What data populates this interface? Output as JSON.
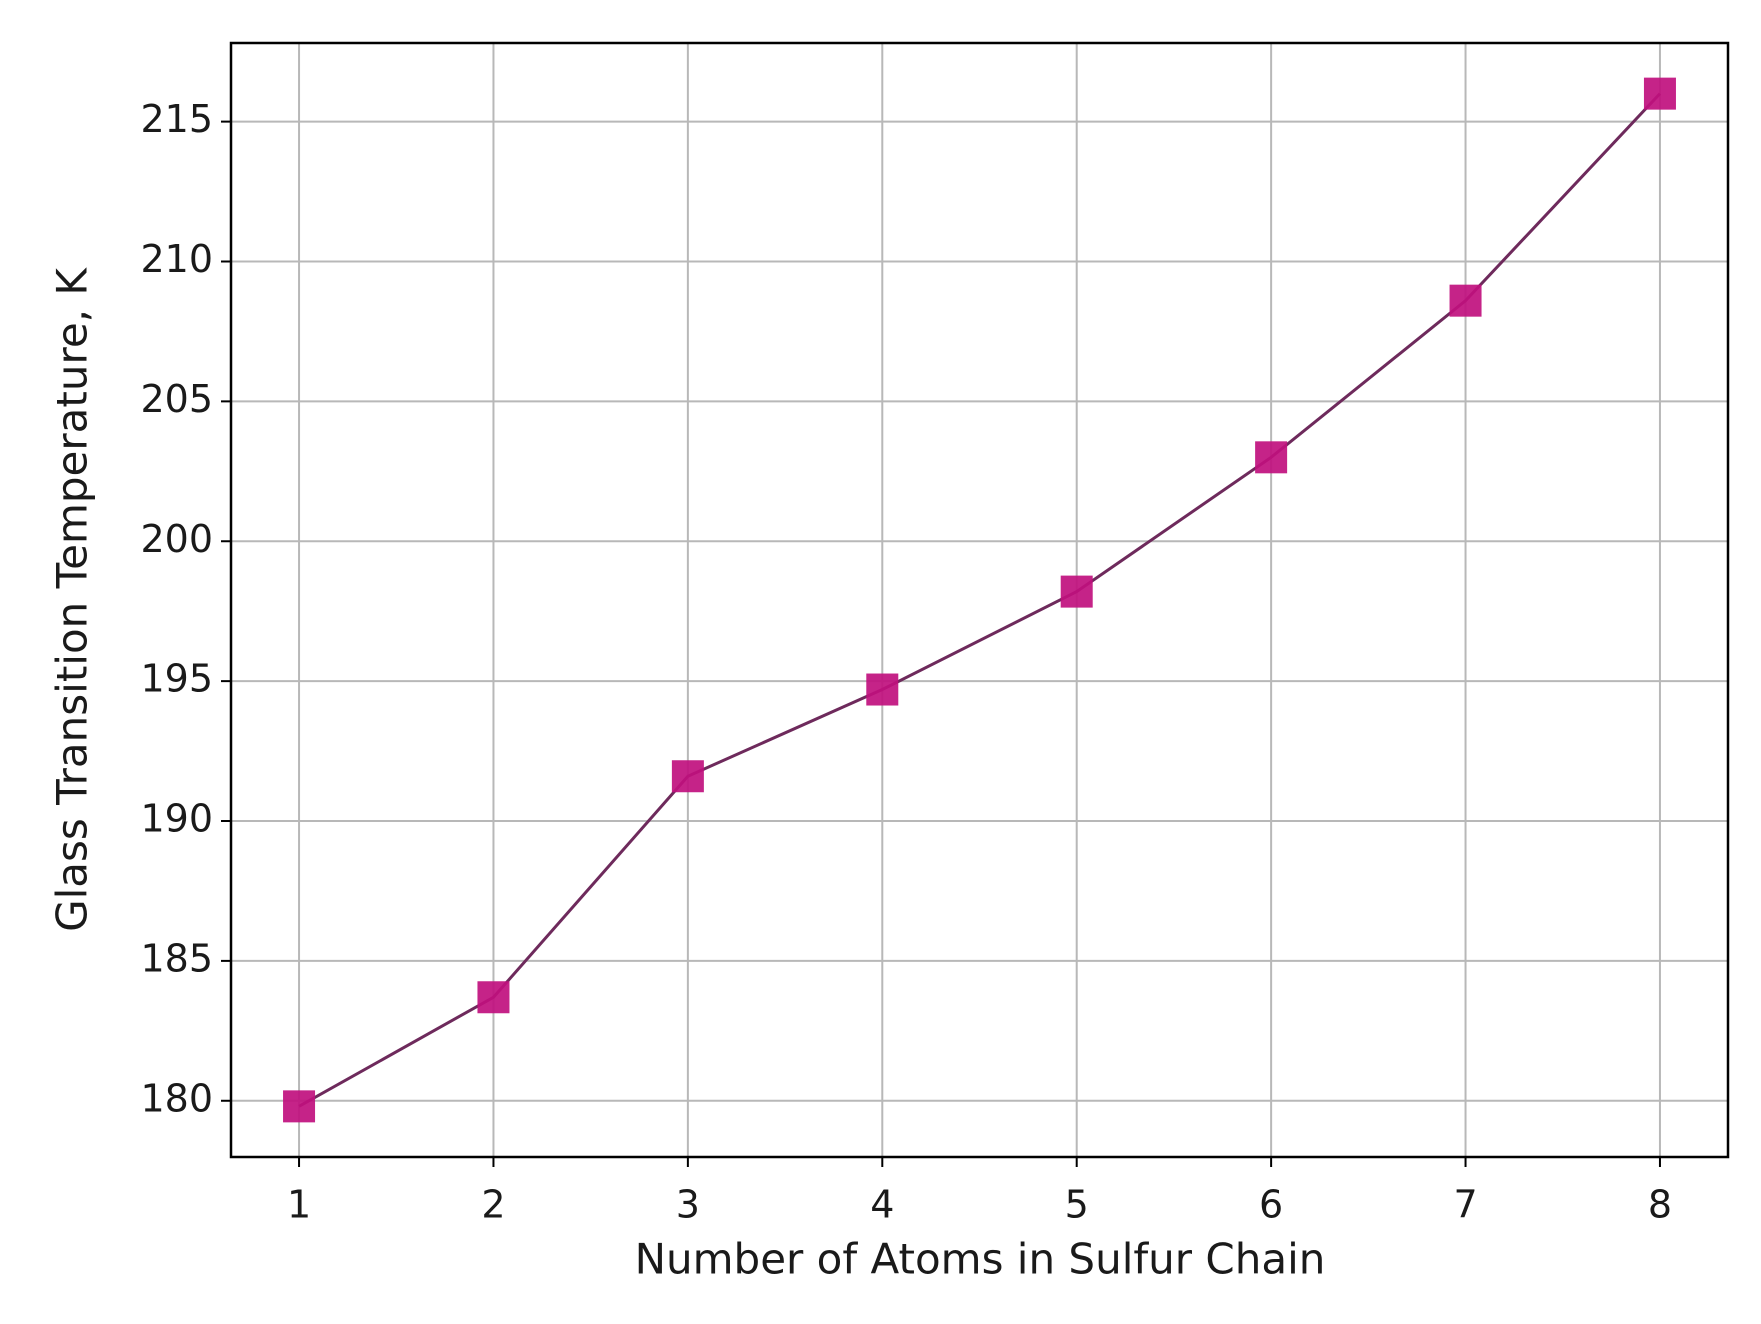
{
  "chart_data": {
    "type": "line",
    "x_label": "Number of Atoms in Sulfur Chain",
    "y_label": "Glass Transition Temperature, K",
    "x": [
      1,
      2,
      3,
      4,
      5,
      6,
      7,
      8
    ],
    "values": [
      179.8,
      183.7,
      191.6,
      194.7,
      198.2,
      203.0,
      208.6,
      216.0
    ],
    "color": "#6e2a5c",
    "marker_color": "#c0107e",
    "marker": "square",
    "xlim": [
      0.65,
      8.35
    ],
    "xticks": [
      1,
      2,
      3,
      4,
      5,
      6,
      7,
      8
    ],
    "ylim": [
      177.99,
      217.81
    ],
    "yticks": [
      180,
      185,
      190,
      195,
      200,
      205,
      210,
      215
    ],
    "grid": true
  }
}
